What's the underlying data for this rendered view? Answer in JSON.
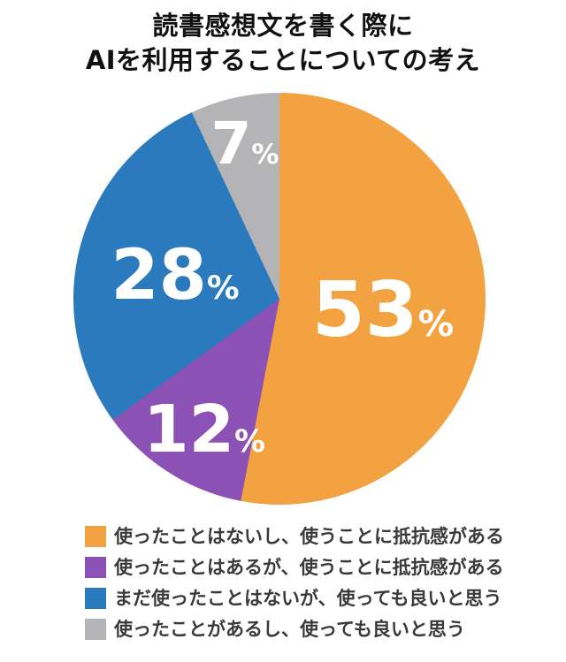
{
  "title": {
    "line1": "読書感想文を書く際に",
    "line2": "AIを利用することについての考え"
  },
  "chart_data": {
    "type": "pie",
    "title": "読書感想文を書く際に AIを利用することについての考え",
    "unit": "%",
    "start_angle_deg": 0,
    "direction": "clockwise",
    "legend_position": "bottom",
    "slices": [
      {
        "label": "使ったことはないし、使うことに抵抗感がある",
        "value": 53,
        "color": "#F2A240"
      },
      {
        "label": "使ったことはあるが、使うことに抵抗感がある",
        "value": 12,
        "color": "#8C51B5"
      },
      {
        "label": "まだ使ったことはないが、使っても良いと思う",
        "value": 28,
        "color": "#2B7ABE"
      },
      {
        "label": "使ったことがあるし、使っても良いと思う",
        "value": 7,
        "color": "#B4B4B6"
      }
    ]
  },
  "colors": {
    "background": "#FFFFFF",
    "title_text": "#111111",
    "legend_text": "#3A3A3A",
    "slice_label_text": "#FFFFFF"
  }
}
